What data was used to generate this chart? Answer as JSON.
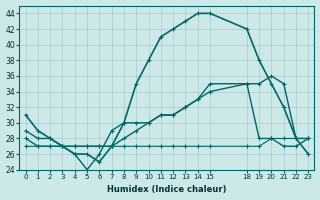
{
  "xlabel": "Humidex (Indice chaleur)",
  "bg_color": "#cce8e8",
  "grid_color": "#aacccc",
  "line_color": "#006666",
  "xlim": [
    -0.5,
    23.5
  ],
  "ylim": [
    24,
    45
  ],
  "yticks": [
    24,
    26,
    28,
    30,
    32,
    34,
    36,
    38,
    40,
    42,
    44
  ],
  "xticks": [
    0,
    1,
    2,
    3,
    4,
    5,
    6,
    7,
    8,
    9,
    10,
    11,
    12,
    13,
    14,
    15,
    18,
    19,
    20,
    21,
    22,
    23
  ],
  "xtick_labels": [
    "0",
    "1",
    "2",
    "3",
    "4",
    "5",
    "6",
    "7",
    "8",
    "9",
    "10",
    "11",
    "12",
    "13",
    "14",
    "15",
    "18",
    "19",
    "20",
    "21",
    "22",
    "23"
  ],
  "series_x": [
    [
      0,
      1,
      2,
      3,
      4,
      5,
      6,
      7,
      8,
      9,
      10,
      11,
      12,
      13,
      14,
      15,
      18,
      19,
      20,
      21,
      22,
      23
    ],
    [
      0,
      1,
      2,
      3,
      4,
      5,
      6,
      7,
      8,
      9,
      10,
      11,
      12,
      13,
      14,
      15,
      18,
      19,
      20,
      21,
      22,
      23
    ],
    [
      0,
      1,
      2,
      3,
      4,
      5,
      6,
      7,
      8,
      9,
      10,
      11,
      12,
      13,
      14,
      15,
      18,
      19,
      20,
      21,
      22,
      23
    ],
    [
      0,
      1,
      2,
      3,
      4,
      5,
      6,
      7,
      8,
      9,
      10,
      11,
      12,
      13,
      14,
      15,
      18,
      19,
      20,
      21,
      22,
      23
    ]
  ],
  "series_y": [
    [
      31,
      29,
      28,
      27,
      26,
      26,
      25,
      27,
      30,
      35,
      38,
      41,
      42,
      43,
      44,
      44,
      42,
      38,
      35,
      32,
      28,
      26
    ],
    [
      28,
      27,
      27,
      27,
      26,
      24,
      26,
      29,
      30,
      30,
      30,
      31,
      31,
      32,
      33,
      35,
      35,
      28,
      28,
      27,
      27,
      28
    ],
    [
      29,
      28,
      28,
      27,
      27,
      27,
      27,
      27,
      28,
      29,
      30,
      31,
      31,
      32,
      33,
      34,
      35,
      35,
      36,
      35,
      28,
      28
    ],
    [
      27,
      27,
      27,
      27,
      27,
      27,
      27,
      27,
      27,
      27,
      27,
      27,
      27,
      27,
      27,
      27,
      27,
      27,
      28,
      28,
      28,
      28
    ]
  ]
}
